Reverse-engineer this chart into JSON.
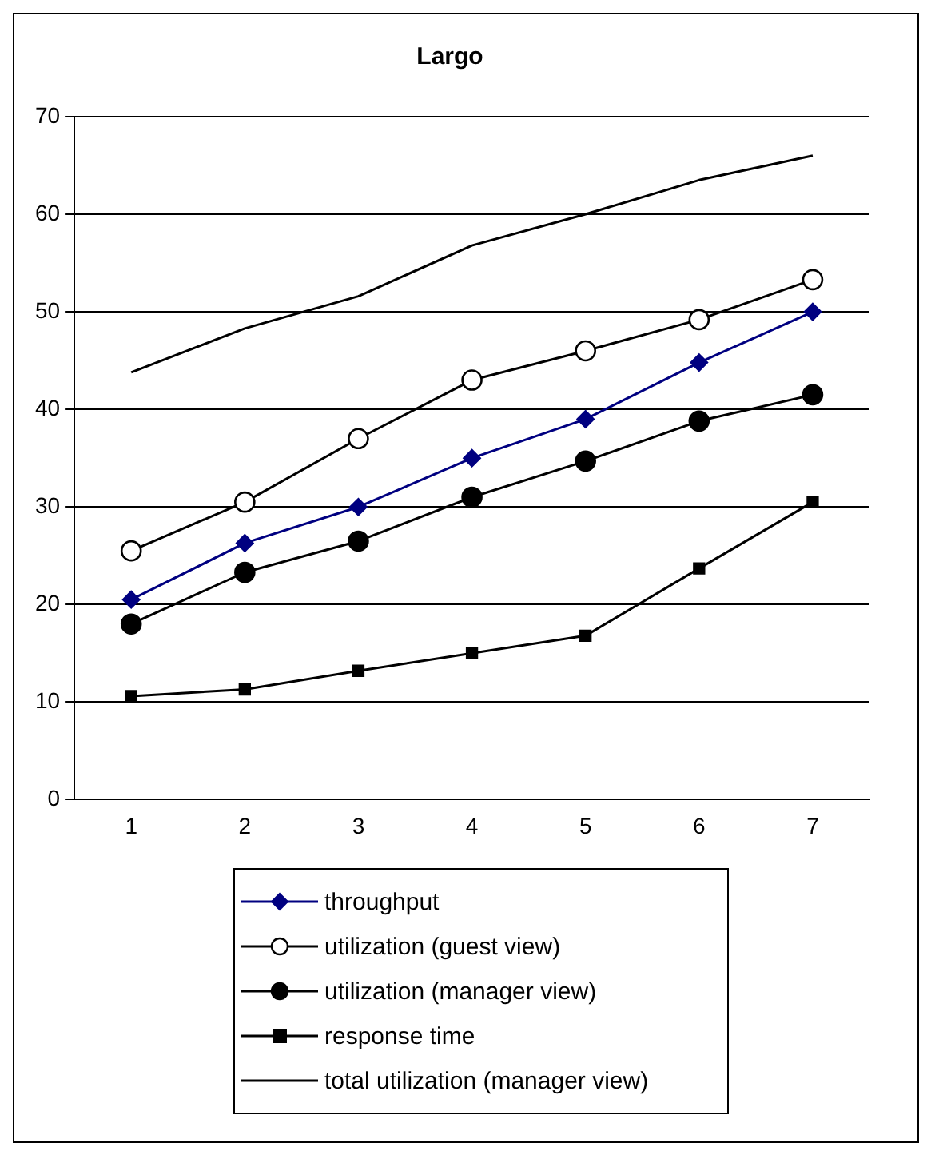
{
  "chart_data": {
    "type": "line",
    "title": "Largo",
    "categories": [
      "1",
      "2",
      "3",
      "4",
      "5",
      "6",
      "7"
    ],
    "series": [
      {
        "name": "throughput",
        "color": "#000080",
        "marker": "diamond",
        "values": [
          20.5,
          26.3,
          30,
          35,
          39,
          44.8,
          50
        ]
      },
      {
        "name": "utilization (guest view)",
        "color": "#000000",
        "marker": "circle",
        "values": [
          25.5,
          30.5,
          37,
          43,
          46,
          49.2,
          53.3
        ]
      },
      {
        "name": "utilization (manager view)",
        "color": "#000000",
        "marker": "circle",
        "values": [
          18,
          23.3,
          26.5,
          31,
          34.7,
          38.8,
          41.5
        ]
      },
      {
        "name": "response time",
        "color": "#000000",
        "marker": "square",
        "values": [
          10.6,
          11.3,
          13.2,
          15,
          16.8,
          23.7,
          30.5
        ]
      },
      {
        "name": "total utilization (manager view)",
        "color": "#000000",
        "marker": "none",
        "values": [
          43.8,
          48.3,
          51.6,
          56.8,
          60,
          63.5,
          66
        ]
      }
    ],
    "ylim": [
      0,
      70
    ],
    "yticks": [
      0,
      10,
      20,
      30,
      40,
      50,
      60,
      70
    ],
    "grid": "y",
    "legend": "bottom"
  }
}
